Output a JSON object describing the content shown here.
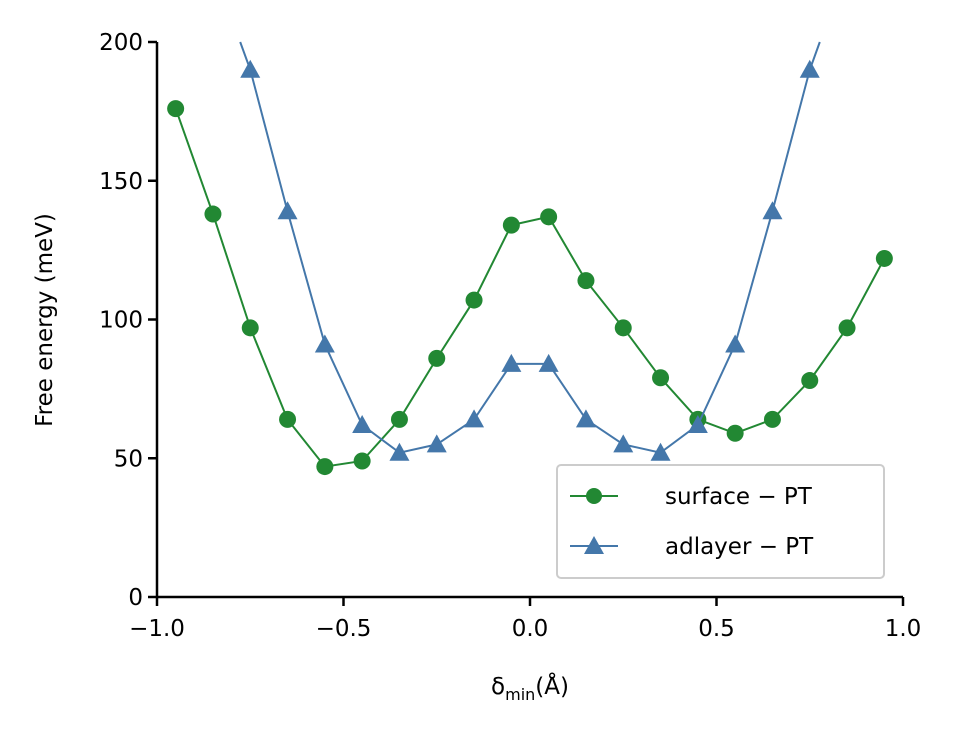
{
  "chart_data": {
    "type": "line",
    "title": "",
    "xlabel_main": "δ",
    "xlabel_sub": "min",
    "xlabel_unit": "(Å)",
    "ylabel": "Free energy (meV)",
    "xlim": [
      -1.0,
      1.0
    ],
    "ylim": [
      0,
      200
    ],
    "xticks": [
      -1.0,
      -0.5,
      0.0,
      0.5,
      1.0
    ],
    "xtick_labels": [
      "−1.0",
      "−0.5",
      "0.0",
      "0.5",
      "1.0"
    ],
    "yticks": [
      0,
      50,
      100,
      150,
      200
    ],
    "ytick_labels": [
      "0",
      "50",
      "100",
      "150",
      "200"
    ],
    "grid": false,
    "legend_position": "bottom-right",
    "series": [
      {
        "name": "surface − PT",
        "color": "#228833",
        "marker": "circle",
        "x": [
          -0.95,
          -0.85,
          -0.75,
          -0.65,
          -0.55,
          -0.45,
          -0.35,
          -0.25,
          -0.15,
          -0.05,
          0.05,
          0.15,
          0.25,
          0.35,
          0.45,
          0.55,
          0.65,
          0.75,
          0.85,
          0.95
        ],
        "y": [
          176,
          138,
          97,
          64,
          47,
          49,
          64,
          86,
          107,
          134,
          137,
          114,
          97,
          79,
          64,
          59,
          64,
          78,
          97,
          122
        ]
      },
      {
        "name": "adlayer − PT",
        "color": "#4477AA",
        "marker": "triangle",
        "x": [
          -0.75,
          -0.65,
          -0.55,
          -0.45,
          -0.35,
          -0.25,
          -0.15,
          -0.05,
          0.05,
          0.15,
          0.25,
          0.35,
          0.45,
          0.55,
          0.65,
          0.75
        ],
        "y": [
          190,
          139,
          91,
          62,
          52,
          55,
          64,
          84,
          84,
          64,
          55,
          52,
          62,
          91,
          139,
          190
        ],
        "line_start": [
          -0.777,
          200
        ],
        "line_end": [
          0.777,
          200
        ]
      }
    ]
  }
}
